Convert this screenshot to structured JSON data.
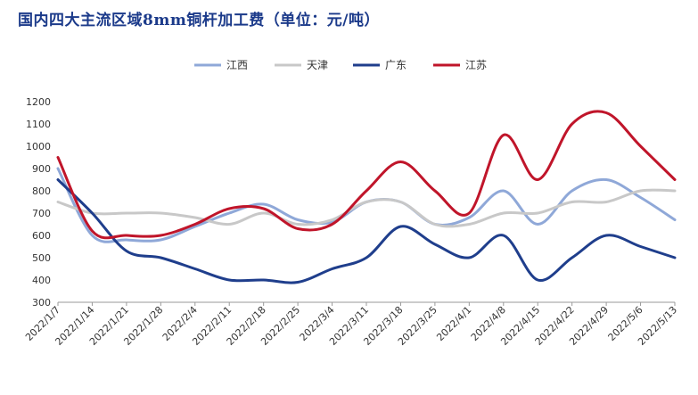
{
  "chart_data": {
    "type": "line",
    "title": "国内四大主流区域8mm铜杆加工费（单位：元/吨）",
    "xlabel": "",
    "ylabel": "",
    "ylim": [
      300,
      1200
    ],
    "yticks": [
      "1200",
      "1100",
      "1000",
      "900",
      "800",
      "700",
      "600",
      "500",
      "400",
      "300"
    ],
    "categories": [
      "2022/1/7",
      "2022/1/14",
      "2022/1/21",
      "2022/1/28",
      "2022/2/4",
      "2022/2/11",
      "2022/2/18",
      "2022/2/25",
      "2022/3/4",
      "2022/3/11",
      "2022/3/18",
      "2022/3/25",
      "2022/4/1",
      "2022/4/8",
      "2022/4/15",
      "2022/4/22",
      "2022/4/29",
      "2022/5/6",
      "2022/5/13"
    ],
    "legend_position": "top-center",
    "grid": false,
    "series": [
      {
        "name": "江西",
        "color": "#8fa8d8",
        "values": [
          900,
          600,
          580,
          580,
          640,
          700,
          740,
          670,
          660,
          750,
          750,
          650,
          680,
          800,
          650,
          800,
          850,
          770,
          670
        ]
      },
      {
        "name": "天津",
        "color": "#c8c8c8",
        "values": [
          750,
          700,
          700,
          700,
          680,
          650,
          700,
          650,
          670,
          750,
          750,
          650,
          650,
          700,
          700,
          750,
          750,
          800,
          800
        ]
      },
      {
        "name": "广东",
        "color": "#1f3e8c",
        "values": [
          850,
          700,
          530,
          500,
          450,
          400,
          400,
          390,
          450,
          500,
          640,
          560,
          500,
          600,
          400,
          500,
          600,
          550,
          500
        ]
      },
      {
        "name": "江苏",
        "color": "#c0152a",
        "values": [
          950,
          620,
          600,
          600,
          650,
          720,
          720,
          630,
          650,
          800,
          930,
          800,
          700,
          1050,
          850,
          1100,
          1150,
          1000,
          850
        ]
      }
    ]
  }
}
